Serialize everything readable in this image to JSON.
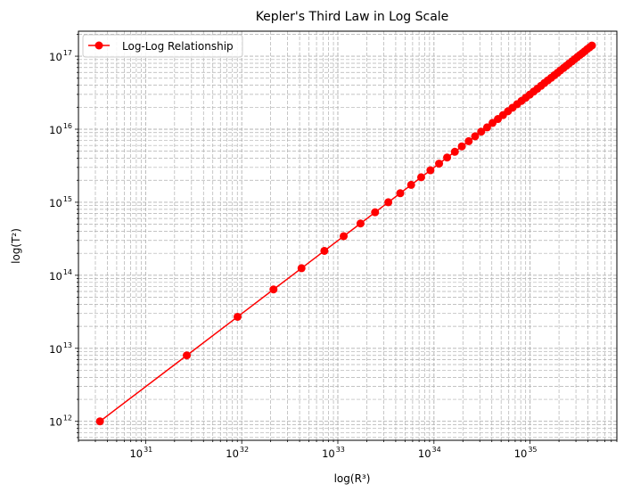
{
  "chart_data": {
    "type": "line",
    "title": "Kepler's Third Law in Log Scale",
    "xlabel": "log(R³)",
    "ylabel": "log(T²)",
    "x_scale": "log",
    "y_scale": "log",
    "xlim": [
      2e+30,
      8e+35
    ],
    "ylim": [
      550000000000.0,
      2.2e+17
    ],
    "grid": true,
    "grid_style": "dashed",
    "legend_position": "upper-left",
    "x_ticks": [
      {
        "base": "10",
        "exp": "31",
        "value": 1e+31
      },
      {
        "base": "10",
        "exp": "32",
        "value": 1e+32
      },
      {
        "base": "10",
        "exp": "33",
        "value": 1e+33
      },
      {
        "base": "10",
        "exp": "34",
        "value": 1e+34
      },
      {
        "base": "10",
        "exp": "35",
        "value": 1e+35
      }
    ],
    "y_ticks": [
      {
        "base": "10",
        "exp": "12",
        "value": 1000000000000.0
      },
      {
        "base": "10",
        "exp": "13",
        "value": 10000000000000.0
      },
      {
        "base": "10",
        "exp": "14",
        "value": 100000000000000.0
      },
      {
        "base": "10",
        "exp": "15",
        "value": 1000000000000000.0
      },
      {
        "base": "10",
        "exp": "16",
        "value": 1e+16
      },
      {
        "base": "10",
        "exp": "17",
        "value": 1e+17
      }
    ],
    "series": [
      {
        "name": "Log-Log Relationship",
        "color": "#ff0000",
        "marker": "circle",
        "x": [
          3.35e+30,
          2.68e+31,
          9.05e+31,
          2.14e+32,
          4.19e+32,
          7.24e+32,
          1.15e+33,
          1.72e+33,
          2.44e+33,
          3.35e+33,
          4.46e+33,
          5.79e+33,
          7.36e+33,
          9.19e+33,
          1.13e+34,
          1.37e+34,
          1.65e+34,
          1.95e+34,
          2.3e+34,
          2.68e+34,
          3.1e+34,
          3.57e+34,
          4.07e+34,
          4.63e+34,
          5.23e+34,
          5.88e+34,
          6.58e+34,
          7.33e+34,
          8.14e+34,
          9e+34,
          9.92e+34,
          1.09e+35,
          1.19e+35,
          1.3e+35,
          1.41e+35,
          1.53e+35,
          1.66e+35,
          1.79e+35,
          1.93e+35,
          2.07e+35,
          2.23e+35,
          2.39e+35,
          2.55e+35,
          2.73e+35,
          2.91e+35,
          3.1e+35,
          3.3e+35,
          3.5e+35,
          3.71e+35,
          3.93e+35,
          4.16e+35,
          4.4e+35
        ],
        "y": [
          1000000000000.0,
          8000000000000.0,
          27000000000000.0,
          64000000000000.0,
          125000000000000.0,
          216000000000000.0,
          343000000000000.0,
          512000000000000.0,
          729000000000000.0,
          1000000000000000.0,
          1330000000000000.0,
          1730000000000000.0,
          2200000000000000.0,
          2740000000000000.0,
          3380000000000000.0,
          4100000000000000.0,
          4910000000000000.0,
          5830000000000000.0,
          6860000000000000.0,
          8000000000000000.0,
          9260000000000000.0,
          1.06e+16,
          1.22e+16,
          1.38e+16,
          1.56e+16,
          1.76e+16,
          1.97e+16,
          2.2e+16,
          2.44e+16,
          2.7e+16,
          2.98e+16,
          3.28e+16,
          3.59e+16,
          3.93e+16,
          4.29e+16,
          4.67e+16,
          5.06e+16,
          5.49e+16,
          5.93e+16,
          6.4e+16,
          6.89e+16,
          7.41e+16,
          7.95e+16,
          8.52e+16,
          9.11e+16,
          9.73e+16,
          1.04e+17,
          1.1e+17,
          1.17e+17,
          1.25e+17,
          1.32e+17,
          1.4e+17
        ]
      }
    ]
  }
}
